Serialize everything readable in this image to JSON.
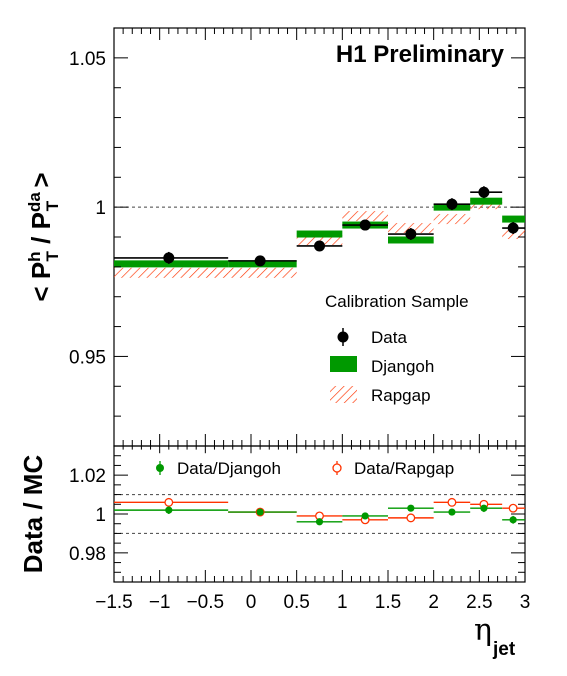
{
  "figure": {
    "label": "H1 Preliminary",
    "x_label_main": "η",
    "x_label_sub": "jet",
    "colors": {
      "data": "#000000",
      "djangoh": "#009900",
      "rapgap": "#ff3300",
      "frame": "#000000",
      "reference_line": "#444444"
    }
  },
  "chart_data": [
    {
      "type": "scatter",
      "name": "top-panel",
      "ylabel_parts": [
        "< P",
        "h",
        "T",
        " / P",
        "da",
        "T",
        " >"
      ],
      "ylim": [
        0.92,
        1.06
      ],
      "xlim": [
        -1.5,
        3.0
      ],
      "ytick_labels": [
        "0.95",
        "1",
        "1.05"
      ],
      "yticks": [
        0.95,
        1.0,
        1.05
      ],
      "reference_line": 1.0,
      "bins": [
        [
          -1.5,
          -0.25
        ],
        [
          -0.25,
          0.5
        ],
        [
          0.5,
          1.0
        ],
        [
          1.0,
          1.5
        ],
        [
          1.5,
          2.0
        ],
        [
          2.0,
          2.4
        ],
        [
          2.4,
          2.75
        ],
        [
          2.75,
          3.0
        ]
      ],
      "legend": {
        "title": "Calibration Sample",
        "entries": [
          "Data",
          "Djangoh",
          "Rapgap"
        ],
        "placement": "bottom-right"
      },
      "series": [
        {
          "name": "Data",
          "x": [
            -0.9,
            0.1,
            0.75,
            1.25,
            1.75,
            2.2,
            2.55,
            2.87
          ],
          "y": [
            0.983,
            0.982,
            0.987,
            0.994,
            0.991,
            1.001,
            1.005,
            0.993
          ],
          "yerr": [
            0.002,
            0.001,
            0.001,
            0.001,
            0.002,
            0.002,
            0.002,
            0.002
          ]
        },
        {
          "name": "Djangoh",
          "y": [
            0.981,
            0.981,
            0.991,
            0.994,
            0.989,
            1.0,
            1.002,
            0.996
          ]
        },
        {
          "name": "Rapgap",
          "y": [
            0.978,
            0.978,
            0.989,
            0.997,
            0.993,
            0.996,
            1.001,
            0.991
          ]
        }
      ]
    },
    {
      "type": "scatter",
      "name": "ratio-panel",
      "ylabel": "Data / MC",
      "ylim": [
        0.965,
        1.035
      ],
      "xlim": [
        -1.5,
        3.0
      ],
      "ytick_labels": [
        "0.98",
        "1",
        "1.02"
      ],
      "yticks": [
        0.98,
        1.0,
        1.02
      ],
      "xtick_labels": [
        "−1.5",
        "−1",
        "−0.5",
        "0",
        "0.5",
        "1",
        "1.5",
        "2",
        "2.5",
        "3"
      ],
      "xticks": [
        -1.5,
        -1.0,
        -0.5,
        0.0,
        0.5,
        1.0,
        1.5,
        2.0,
        2.5,
        3.0
      ],
      "reference_lines": [
        0.99,
        1.01
      ],
      "legend": {
        "entries": [
          "Data/Djangoh",
          "Data/Rapgap"
        ],
        "placement": "top"
      },
      "series": [
        {
          "name": "Data/Djangoh",
          "x": [
            -0.9,
            0.1,
            0.75,
            1.25,
            1.75,
            2.2,
            2.55,
            2.87
          ],
          "y": [
            1.002,
            1.001,
            0.996,
            0.999,
            1.003,
            1.001,
            1.003,
            0.997
          ],
          "yerr": [
            0.002,
            0.001,
            0.001,
            0.001,
            0.001,
            0.001,
            0.002,
            0.002
          ]
        },
        {
          "name": "Data/Rapgap",
          "x": [
            -0.9,
            0.1,
            0.75,
            1.25,
            1.75,
            2.2,
            2.55,
            2.87
          ],
          "y": [
            1.006,
            1.001,
            0.999,
            0.997,
            0.998,
            1.006,
            1.005,
            1.003
          ],
          "yerr": [
            0.002,
            0.001,
            0.001,
            0.001,
            0.001,
            0.001,
            0.002,
            0.002
          ]
        }
      ]
    }
  ]
}
